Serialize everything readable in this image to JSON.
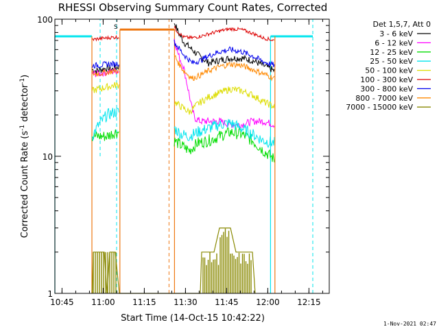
{
  "chart_data": {
    "type": "line",
    "title": "RHESSI Observing Summary Count Rates, Corrected",
    "xlabel": "Start Time (14-Oct-15 10:42:22)",
    "ylabel_pre": "Corrected Count Rate (s",
    "ylabel_sup1": "-1",
    "ylabel_mid": " detector",
    "ylabel_sup2": "-1",
    "ylabel_post": ")",
    "footer": "1-Nov-2021 02:47",
    "legend_title": "Det 1,5,7, Att 0",
    "legend_placement": "right",
    "x_unit": "minutes since 10:42:22",
    "xlim": [
      0,
      100
    ],
    "ylim": [
      1,
      100
    ],
    "y_scale": "log",
    "x_ticks": [
      {
        "x": 2.6,
        "label": "10:45"
      },
      {
        "x": 17.6,
        "label": "11:00"
      },
      {
        "x": 32.6,
        "label": "11:15"
      },
      {
        "x": 47.6,
        "label": "11:30"
      },
      {
        "x": 62.6,
        "label": "11:45"
      },
      {
        "x": 77.6,
        "label": "12:00"
      },
      {
        "x": 92.6,
        "label": "12:15"
      }
    ],
    "y_ticks": [
      {
        "y": 1,
        "label": "1"
      },
      {
        "y": 10,
        "label": "10"
      },
      {
        "y": 100,
        "label": "100"
      }
    ],
    "flag": {
      "x": 22.5,
      "y": 100,
      "label": "S",
      "color": "#ee7711"
    },
    "segments": [
      [
        13.6,
        23.5
      ],
      [
        43.5,
        80.0
      ]
    ],
    "series": [
      {
        "name": "3 - 6 keV",
        "color": "#000000",
        "noise": 0.06,
        "points": [
          [
            13.6,
            43
          ],
          [
            15,
            42
          ],
          [
            17,
            43
          ],
          [
            19,
            44
          ],
          [
            21,
            43
          ],
          [
            23,
            45
          ],
          [
            23.5,
            45
          ],
          [
            43.5,
            95
          ],
          [
            45,
            80
          ],
          [
            47,
            68
          ],
          [
            50,
            60
          ],
          [
            53,
            53
          ],
          [
            56,
            48
          ],
          [
            60,
            50
          ],
          [
            64,
            52
          ],
          [
            68,
            52
          ],
          [
            72,
            50
          ],
          [
            75,
            47
          ],
          [
            78,
            44
          ],
          [
            80,
            42
          ]
        ]
      },
      {
        "name": "6 - 12 keV",
        "color": "#ff00ff",
        "noise": 0.06,
        "points": [
          [
            13.6,
            40
          ],
          [
            16,
            40
          ],
          [
            19,
            41
          ],
          [
            22,
            42
          ],
          [
            23.5,
            42
          ],
          [
            43.5,
            72
          ],
          [
            45,
            55
          ],
          [
            47,
            44
          ],
          [
            48,
            35
          ],
          [
            49,
            28
          ],
          [
            50,
            22
          ],
          [
            51,
            19
          ],
          [
            53,
            18
          ],
          [
            56,
            18
          ],
          [
            60,
            18
          ],
          [
            64,
            17
          ],
          [
            68,
            17
          ],
          [
            72,
            18
          ],
          [
            76,
            18
          ],
          [
            80,
            17
          ]
        ]
      },
      {
        "name": "12 - 25 keV",
        "color": "#00dd00",
        "noise": 0.1,
        "points": [
          [
            13.6,
            14
          ],
          [
            16,
            14
          ],
          [
            19,
            14
          ],
          [
            22,
            15
          ],
          [
            23.5,
            15
          ],
          [
            43.5,
            13
          ],
          [
            46,
            12
          ],
          [
            49,
            11
          ],
          [
            52,
            12.5
          ],
          [
            56,
            13
          ],
          [
            60,
            14
          ],
          [
            64,
            15
          ],
          [
            68,
            14.5
          ],
          [
            72,
            13
          ],
          [
            76,
            11
          ],
          [
            80,
            9.5
          ]
        ]
      },
      {
        "name": "25 - 50 keV",
        "color": "#00e5ee",
        "noise": 0.1,
        "points": [
          [
            13.6,
            14
          ],
          [
            16,
            17
          ],
          [
            19,
            20
          ],
          [
            22,
            21
          ],
          [
            23.5,
            21
          ],
          [
            43.5,
            16
          ],
          [
            46,
            14.5
          ],
          [
            49,
            14
          ],
          [
            52,
            15
          ],
          [
            56,
            16
          ],
          [
            60,
            17
          ],
          [
            64,
            17.5
          ],
          [
            68,
            16
          ],
          [
            72,
            14.5
          ],
          [
            76,
            13
          ],
          [
            80,
            12.5
          ]
        ]
      },
      {
        "name": "50 - 100 keV",
        "color": "#dddd00",
        "noise": 0.06,
        "points": [
          [
            13.6,
            30
          ],
          [
            16,
            31
          ],
          [
            19,
            32
          ],
          [
            22,
            33
          ],
          [
            23.5,
            33
          ],
          [
            43.5,
            25
          ],
          [
            46,
            23
          ],
          [
            49,
            21
          ],
          [
            52,
            24
          ],
          [
            56,
            27
          ],
          [
            60,
            29
          ],
          [
            64,
            31
          ],
          [
            68,
            30
          ],
          [
            72,
            28
          ],
          [
            76,
            25
          ],
          [
            80,
            23
          ]
        ]
      },
      {
        "name": "100 - 300 keV",
        "color": "#dd0000",
        "noise": 0.03,
        "points": [
          [
            13.6,
            71
          ],
          [
            16,
            72
          ],
          [
            19,
            73
          ],
          [
            22,
            74
          ],
          [
            23.5,
            74
          ],
          [
            43.5,
            87
          ],
          [
            45,
            80
          ],
          [
            47,
            74
          ],
          [
            50,
            73
          ],
          [
            53,
            75
          ],
          [
            56,
            78
          ],
          [
            60,
            82
          ],
          [
            64,
            85
          ],
          [
            68,
            84
          ],
          [
            72,
            79
          ],
          [
            76,
            73
          ],
          [
            80,
            70
          ]
        ]
      },
      {
        "name": "300 - 800 keV",
        "color": "#0000ee",
        "noise": 0.05,
        "points": [
          [
            13.6,
            46
          ],
          [
            16,
            46
          ],
          [
            19,
            47
          ],
          [
            22,
            47
          ],
          [
            23.5,
            48
          ],
          [
            43.5,
            68
          ],
          [
            45,
            62
          ],
          [
            47,
            55
          ],
          [
            50,
            48
          ],
          [
            53,
            50
          ],
          [
            56,
            54
          ],
          [
            60,
            58
          ],
          [
            64,
            60
          ],
          [
            68,
            58
          ],
          [
            72,
            54
          ],
          [
            76,
            49
          ],
          [
            80,
            46
          ]
        ]
      },
      {
        "name": "800 - 7000 keV",
        "color": "#ff8800",
        "noise": 0.05,
        "points": [
          [
            13.6,
            40
          ],
          [
            16,
            40
          ],
          [
            19,
            41
          ],
          [
            22,
            42
          ],
          [
            23.5,
            42
          ],
          [
            43.5,
            55
          ],
          [
            45,
            48
          ],
          [
            47,
            42
          ],
          [
            50,
            37
          ],
          [
            53,
            39
          ],
          [
            56,
            42
          ],
          [
            60,
            45
          ],
          [
            64,
            47
          ],
          [
            68,
            46
          ],
          [
            72,
            43
          ],
          [
            76,
            40
          ],
          [
            80,
            37
          ]
        ]
      },
      {
        "name": "7000 - 15000 keV",
        "color": "#888800",
        "noise": 0.0,
        "points": [
          [
            13.6,
            1.0
          ],
          [
            14,
            2.0
          ],
          [
            18,
            2.0
          ],
          [
            19,
            1.0
          ],
          [
            20,
            2.0
          ],
          [
            22,
            2.0
          ],
          [
            23.5,
            1.0
          ],
          [
            53,
            1.0
          ],
          [
            53.5,
            2.0
          ],
          [
            58,
            2.0
          ],
          [
            60,
            3.0
          ],
          [
            64,
            3.0
          ],
          [
            66,
            2.0
          ],
          [
            72,
            2.0
          ],
          [
            73,
            1.0
          ]
        ]
      }
    ],
    "dashed_lines": [
      {
        "x": 16.5,
        "color": "#00e5ee",
        "ymin": 10,
        "ymax": 100
      },
      {
        "x": 22.5,
        "color": "#00e5ee",
        "ymin": 1,
        "ymax": 100
      },
      {
        "x": 41.6,
        "color": "#ee7711",
        "ymin": 1,
        "ymax": 100
      },
      {
        "x": 94.0,
        "color": "#00e5ee",
        "ymin": 1,
        "ymax": 100
      }
    ],
    "solid_lines": [
      {
        "x": 0.0,
        "color": "#00e5ee",
        "ymin": 1,
        "ymax": 75
      },
      {
        "x": 13.5,
        "color": "#ee7711",
        "ymin": 1,
        "ymax": 75
      },
      {
        "x": 23.7,
        "color": "#ee7711",
        "ymin": 1,
        "ymax": 84
      },
      {
        "x": 43.6,
        "color": "#ee7711",
        "ymin": 1,
        "ymax": 84
      },
      {
        "x": 80.2,
        "color": "#ee7711",
        "ymin": 1,
        "ymax": 75
      },
      {
        "x": 78.6,
        "color": "#00e5ee",
        "ymin": 1,
        "ymax": 75
      }
    ],
    "horizontal_bars": [
      {
        "x0": 0.0,
        "x1": 13.5,
        "y": 75,
        "color": "#00e5ee"
      },
      {
        "x0": 23.7,
        "x1": 43.6,
        "y": 84,
        "color": "#ee7711"
      },
      {
        "x0": 78.6,
        "x1": 94.0,
        "y": 75,
        "color": "#00e5ee"
      }
    ]
  }
}
